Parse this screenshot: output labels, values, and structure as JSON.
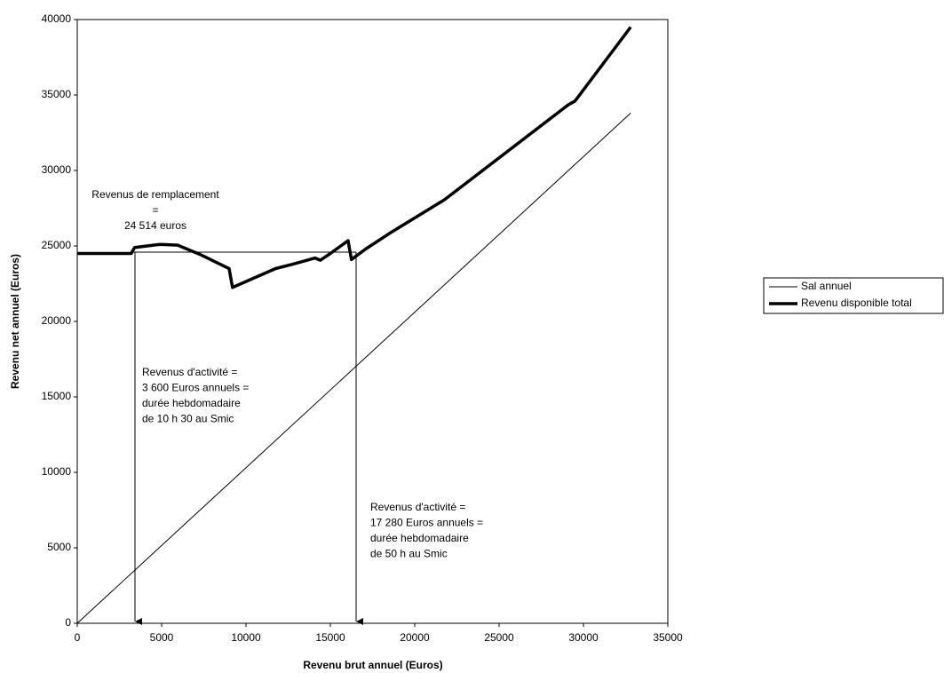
{
  "chart_data": {
    "type": "line",
    "x_label": "Revenu brut annuel (Euros)",
    "y_label": "Revenu net annuel (Euros)",
    "xlim": [
      0,
      35000
    ],
    "xticks": [
      0,
      5000,
      10000,
      15000,
      20000,
      25000,
      30000,
      35000
    ],
    "ylim": [
      0,
      40000
    ],
    "yticks": [
      0,
      5000,
      10000,
      15000,
      20000,
      25000,
      30000,
      35000,
      40000
    ],
    "grid": false,
    "legend": "right",
    "series": [
      {
        "name": "Sal annuel",
        "color": "#000000",
        "width": 1,
        "x": [
          0,
          32800
        ],
        "values": [
          0,
          33800
        ]
      },
      {
        "name": "Revenu disponible total",
        "color": "#000000",
        "width": 3.5,
        "x": [
          0,
          3200,
          3400,
          4900,
          5950,
          7250,
          9000,
          9200,
          11750,
          12800,
          14100,
          14400,
          15000,
          16050,
          16250,
          17100,
          18600,
          21750,
          24900,
          29100,
          29500,
          32800
        ],
        "values": [
          24500,
          24500,
          24900,
          25100,
          25050,
          24450,
          23500,
          22250,
          23500,
          23800,
          24200,
          24050,
          24500,
          25350,
          24100,
          24800,
          25900,
          28050,
          30750,
          34350,
          34600,
          39500
        ]
      }
    ],
    "annotations": [
      {
        "lines": [
          "Revenus de remplacement",
          "=",
          "24 514 euros"
        ]
      },
      {
        "lines": [
          "Revenus d'activité =",
          "3 600 Euros annuels =",
          "durée hebdomadaire",
          "de 10 h 30 au Smic"
        ]
      },
      {
        "lines": [
          "Revenus d'activité =",
          "17 280 Euros annuels =",
          "durée hebdomadaire",
          "de 50 h au Smic"
        ]
      }
    ]
  }
}
